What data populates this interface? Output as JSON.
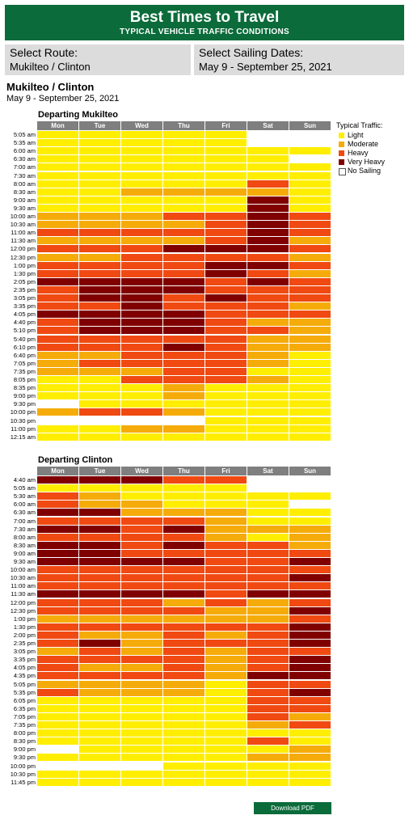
{
  "header": {
    "title": "Best Times to Travel",
    "subtitle": "TYPICAL VEHICLE TRAFFIC CONDITIONS"
  },
  "select_route": {
    "label": "Select Route:",
    "value": "Mukilteo / Clinton"
  },
  "select_dates": {
    "label": "Select Sailing Dates:",
    "value": "May 9 - September 25, 2021"
  },
  "route_title": "Mukilteo / Clinton",
  "route_dates": "May 9 - September 25, 2021",
  "days": [
    "Mon",
    "Tue",
    "Wed",
    "Thu",
    "Fri",
    "Sat",
    "Sun"
  ],
  "colors": {
    "L": "#ffee00",
    "M": "#f5ac0a",
    "H": "#f04a12",
    "V": "#800000",
    "N": "#ffffff",
    "header": "#0b6b3a",
    "dayhdr": "#7f7f7f"
  },
  "legend": {
    "title": "Typical Traffic:",
    "items": [
      {
        "code": "L",
        "label": "Light"
      },
      {
        "code": "M",
        "label": "Moderate"
      },
      {
        "code": "H",
        "label": "Heavy"
      },
      {
        "code": "V",
        "label": "Very Heavy"
      },
      {
        "code": "N",
        "label": "No Sailing"
      }
    ]
  },
  "sections": [
    {
      "title": "Departing Mukilteo",
      "times": [
        "5:05 am",
        "5:35 am",
        "6:00 am",
        "6:30 am",
        "7:00 am",
        "7:30 am",
        "8:00 am",
        "8:30 am",
        "9:00 am",
        "9:30 am",
        "10:00 am",
        "10:30 am",
        "11:00 am",
        "11:30 am",
        "12:00 pm",
        "12:30 pm",
        "1:00 pm",
        "1:30 pm",
        "2:05 pm",
        "2:35 pm",
        "3:05 pm",
        "3:35 pm",
        "4:05 pm",
        "4:40 pm",
        "5:10 pm",
        "5:40 pm",
        "6:10 pm",
        "6:40 pm",
        "7:05 pm",
        "7:35 pm",
        "8:05 pm",
        "8:35 pm",
        "9:00 pm",
        "9:30 pm",
        "10:00 pm",
        "10:30 pm",
        "11:00 pm",
        "12:15 am"
      ],
      "rows": [
        "LLLLLNN",
        "LLLLLNN",
        "LLLLLLL",
        "LLLLLLN",
        "LLLLLLL",
        "LLLLLLL",
        "LLLLLHL",
        "LLMMMML",
        "LLLLLVL",
        "LLLLLVL",
        "MMMHHVH",
        "MMMMHVH",
        "HHHHHVH",
        "MMMMHVM",
        "HHHVVVH",
        "MMHHHHM",
        "HHHHVVH",
        "HHHHVHM",
        "VVVVHVH",
        "HVVVHHH",
        "HVVHVHH",
        "HHVHHHM",
        "VVVVHHH",
        "HVVVHMM",
        "HVVVHHM",
        "HHHHHMM",
        "HHHVHMM",
        "MMHHHML",
        "MHHHHML",
        "MMMHHLL",
        "LLHHHML",
        "LLLMLLL",
        "LLLMLLL",
        "NLLLLLL",
        "MHHMLLL",
        "NNNNLLL",
        "LLMMLLL",
        "LLLLLLL"
      ]
    },
    {
      "title": "Departing Clinton",
      "times": [
        "4:40 am",
        "5:05 am",
        "5:30 am",
        "6:00 am",
        "6:30 am",
        "7:00 am",
        "7:30 am",
        "8:00 am",
        "8:30 am",
        "9:00 am",
        "9:30 am",
        "10:00 am",
        "10:30 am",
        "11:00 am",
        "11:30 am",
        "12:00 pm",
        "12:30 pm",
        "1:00 pm",
        "1:30 pm",
        "2:00 pm",
        "2:35 pm",
        "3:05 pm",
        "3:35 pm",
        "4:05 pm",
        "4:35 pm",
        "5:05 pm",
        "5:35 pm",
        "6:05 pm",
        "6:35 pm",
        "7:05 pm",
        "7:35 pm",
        "8:00 pm",
        "8:30 pm",
        "9:00 pm",
        "9:30 pm",
        "10:00 pm",
        "10:30 pm",
        "11:45 pm"
      ],
      "rows": [
        "VVVHHNN",
        "LLLLLNN",
        "HMLLLLL",
        "HMMLLLN",
        "VVMMMLL",
        "HHHHMLL",
        "VVHVMMM",
        "HHHHMLM",
        "VVHVHHM",
        "VVHHHHH",
        "VVVVHHV",
        "HHHHHHH",
        "HHHHHHV",
        "HHHHHHH",
        "VVVVHVV",
        "HHHMHMH",
        "HHHHMMV",
        "MMMMMMH",
        "HHHHHHV",
        "HMMHMHV",
        "HVMHHHV",
        "MHMHMHH",
        "HHHHMHV",
        "HMMHMHV",
        "HHHHMVV",
        "MMMMLHH",
        "HMMMLHV",
        "LLLLLHH",
        "LLLLLHH",
        "LLLLLHM",
        "LLLLLMH",
        "LLLLLLL",
        "LLLLLHL",
        "NLLLLLM",
        "LLLLLMM",
        "NNNLLLL",
        "LLLLLLL",
        "LLLLLLL"
      ]
    }
  ],
  "download_label": "Download PDF"
}
